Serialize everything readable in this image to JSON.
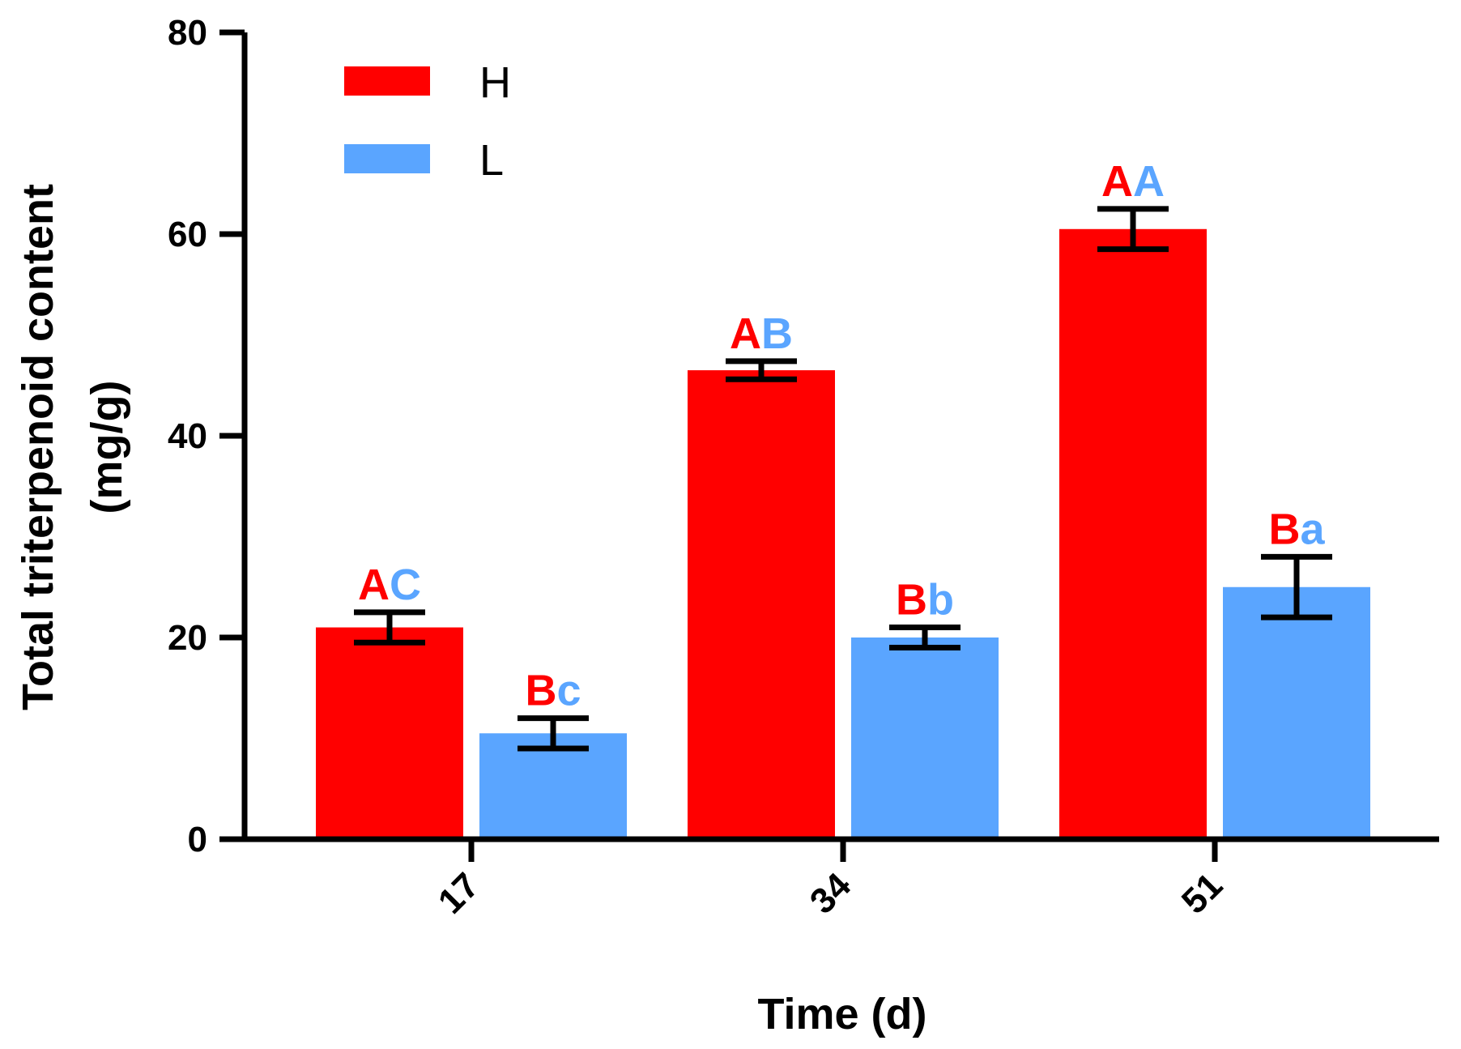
{
  "chart_data": {
    "type": "bar",
    "title": "",
    "xlabel": "Time (d)",
    "ylabel_line1": "Total triterpenoid content",
    "ylabel_line2": "(mg/g)",
    "categories": [
      "17",
      "34",
      "51"
    ],
    "ylim": [
      0,
      80
    ],
    "yticks": [
      0,
      20,
      40,
      60,
      80
    ],
    "legend_position": "top-left",
    "series": [
      {
        "name": "H",
        "color": "#ff0000",
        "values": [
          21,
          46.5,
          60.5
        ],
        "errors": [
          1.5,
          0.9,
          2.0
        ],
        "labels": [
          [
            {
              "text": "A",
              "color": "#ff0000"
            },
            {
              "text": "C",
              "color": "#5aa5ff"
            }
          ],
          [
            {
              "text": "A",
              "color": "#ff0000"
            },
            {
              "text": "B",
              "color": "#5aa5ff"
            }
          ],
          [
            {
              "text": "A",
              "color": "#ff0000"
            },
            {
              "text": "A",
              "color": "#5aa5ff"
            }
          ]
        ]
      },
      {
        "name": "L",
        "color": "#5aa5ff",
        "values": [
          10.5,
          20,
          25
        ],
        "errors": [
          1.5,
          1.0,
          3.0
        ],
        "labels": [
          [
            {
              "text": "B",
              "color": "#ff0000"
            },
            {
              "text": "c",
              "color": "#5aa5ff"
            }
          ],
          [
            {
              "text": "B",
              "color": "#ff0000"
            },
            {
              "text": "b",
              "color": "#5aa5ff"
            }
          ],
          [
            {
              "text": "B",
              "color": "#ff0000"
            },
            {
              "text": "a",
              "color": "#5aa5ff"
            }
          ]
        ]
      }
    ]
  }
}
